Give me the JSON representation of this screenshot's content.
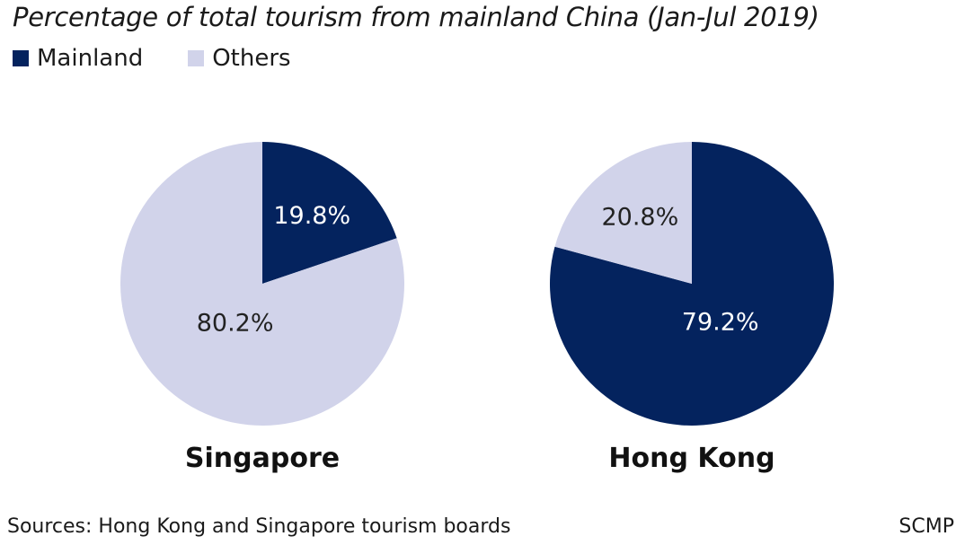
{
  "colors": {
    "mainland": "#04235e",
    "others": "#d1d3ea",
    "label_on_dark": "#ffffff",
    "label_on_light": "#222222"
  },
  "chart_data": [
    {
      "type": "pie",
      "title": "Percentage of total tourism from mainland China (Jan-Jul 2019)",
      "name": "Singapore",
      "slices": [
        {
          "label": "Mainland",
          "value": 19.8,
          "display": "19.8%"
        },
        {
          "label": "Others",
          "value": 80.2,
          "display": "80.2%"
        }
      ],
      "legend": [
        "Mainland",
        "Others"
      ],
      "legend_position": "top-left"
    },
    {
      "type": "pie",
      "title": "Percentage of total tourism from mainland China (Jan-Jul 2019)",
      "name": "Hong Kong",
      "slices": [
        {
          "label": "Mainland",
          "value": 79.2,
          "display": "79.2%"
        },
        {
          "label": "Others",
          "value": 20.8,
          "display": "20.8%"
        }
      ],
      "legend": [
        "Mainland",
        "Others"
      ],
      "legend_position": "top-left"
    }
  ],
  "title": "Percentage of total tourism from mainland China (Jan-Jul 2019)",
  "legend": {
    "items": [
      {
        "label": "Mainland"
      },
      {
        "label": "Others"
      }
    ]
  },
  "footer": {
    "source": "Sources: Hong Kong and Singapore tourism boards",
    "credit": "SCMP"
  }
}
